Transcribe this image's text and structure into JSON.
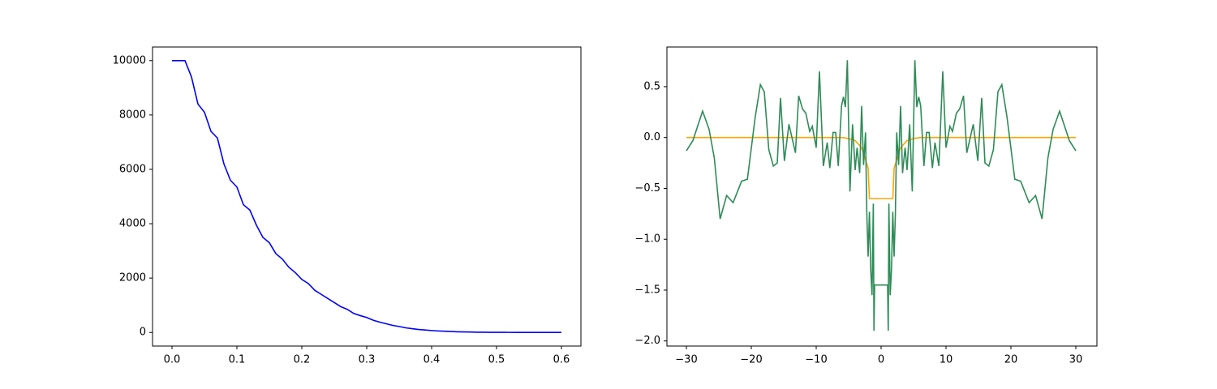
{
  "chart_data": [
    {
      "type": "line",
      "x": [
        0,
        0.01,
        0.02,
        0.03,
        0.04,
        0.05,
        0.06,
        0.07,
        0.08,
        0.09,
        0.1,
        0.11,
        0.12,
        0.13,
        0.14,
        0.15,
        0.16,
        0.17,
        0.18,
        0.19,
        0.2,
        0.21,
        0.22,
        0.23,
        0.24,
        0.25,
        0.26,
        0.27,
        0.28,
        0.29,
        0.3,
        0.31,
        0.32,
        0.33,
        0.34,
        0.35,
        0.36,
        0.37,
        0.38,
        0.39,
        0.4,
        0.41,
        0.42,
        0.43,
        0.44,
        0.45,
        0.46,
        0.47,
        0.48,
        0.49,
        0.5,
        0.51,
        0.52,
        0.53,
        0.54,
        0.55,
        0.56,
        0.57,
        0.58,
        0.59,
        0.6
      ],
      "series": [
        {
          "color": "#0000ff",
          "values": [
            10000,
            10000,
            10000,
            9400,
            8400,
            8100,
            7400,
            7150,
            6200,
            5600,
            5350,
            4700,
            4500,
            3950,
            3500,
            3300,
            2900,
            2700,
            2400,
            2200,
            1950,
            1800,
            1550,
            1400,
            1250,
            1100,
            950,
            850,
            700,
            620,
            550,
            450,
            380,
            320,
            260,
            220,
            170,
            140,
            110,
            90,
            70,
            55,
            45,
            35,
            25,
            20,
            15,
            10,
            8,
            6,
            5,
            4,
            3,
            2,
            2,
            1,
            1,
            1,
            0,
            0,
            0
          ]
        }
      ],
      "xlim": [
        -0.03,
        0.63
      ],
      "xticks": [
        {
          "value": 0,
          "label": "0.0"
        },
        0.1,
        0.2,
        0.3,
        0.4,
        0.5,
        0.6
      ],
      "ylim": [
        -500,
        10500
      ],
      "yticks": [
        0,
        2000,
        4000,
        6000,
        8000,
        10000
      ]
    },
    {
      "type": "line",
      "series": [
        {
          "color": "#ffa500",
          "x": [
            -30,
            -10,
            -6,
            -5,
            -4,
            -3,
            -2.5,
            -2,
            -1.8,
            1.8,
            2,
            2.5,
            3,
            4,
            5,
            6,
            10,
            30
          ],
          "values": [
            0,
            0,
            0,
            -0.01,
            -0.03,
            -0.1,
            -0.2,
            -0.3,
            -0.6,
            -0.6,
            -0.3,
            -0.2,
            -0.1,
            -0.03,
            -0.01,
            0,
            0,
            0
          ]
        },
        {
          "color": "#2e8b57",
          "x": [
            -30,
            -29,
            -27.5,
            -26.5,
            -25.7,
            -24.8,
            -23.8,
            -22.8,
            -21.5,
            -20.6,
            -19.4,
            -18.6,
            -18,
            -17.3,
            -16.6,
            -16,
            -15.5,
            -14.9,
            -14.2,
            -13.2,
            -12.7,
            -12.1,
            -11.6,
            -11,
            -10.6,
            -10,
            -9.5,
            -8.9,
            -8.3,
            -7.9,
            -7.4,
            -7,
            -6.6,
            -6.1,
            -5.8,
            -5.5,
            -5.2,
            -4.8,
            -4.4,
            -4,
            -3.7,
            -3.3,
            -3,
            -2.7,
            -2.4,
            -2.2,
            -2,
            -1.8,
            -1.6,
            -1.4,
            -1.2,
            -1.1,
            -1,
            1,
            1.1,
            1.2,
            1.4,
            1.6,
            1.8,
            2,
            2.2,
            2.4,
            2.7,
            3,
            3.3,
            3.7,
            4,
            4.4,
            4.8,
            5.2,
            5.5,
            5.8,
            6.1,
            6.6,
            7,
            7.4,
            7.9,
            8.3,
            8.9,
            9.5,
            10,
            10.6,
            11,
            11.6,
            12.1,
            12.7,
            13.2,
            14.2,
            14.9,
            15.5,
            16,
            16.6,
            17.3,
            18,
            18.6,
            19.4,
            20.6,
            21.5,
            22.8,
            23.8,
            24.8,
            25.7,
            26.5,
            27.5,
            29,
            30
          ],
          "values": [
            -0.13,
            -0.03,
            0.26,
            0.08,
            -0.2,
            -0.8,
            -0.57,
            -0.64,
            -0.43,
            -0.41,
            0.2,
            0.52,
            0.45,
            -0.12,
            -0.28,
            -0.25,
            0.39,
            -0.23,
            0.13,
            -0.15,
            0.41,
            0.28,
            0.24,
            0.06,
            0.11,
            -0.1,
            0.65,
            -0.28,
            -0.05,
            -0.3,
            0.05,
            0.05,
            -0.28,
            0.31,
            0.4,
            0.3,
            0.76,
            -0.53,
            0.13,
            -0.32,
            -0.1,
            -0.35,
            0.31,
            -0.27,
            0.05,
            -0.75,
            -1.17,
            -0.73,
            -1.3,
            -1.55,
            -0.65,
            -1.9,
            -1.45,
            -1.45,
            -1.9,
            -0.65,
            -1.55,
            -1.3,
            -0.73,
            -1.17,
            -0.75,
            0.05,
            -0.27,
            0.31,
            -0.35,
            -0.1,
            -0.32,
            0.13,
            -0.53,
            0.76,
            0.3,
            0.4,
            0.31,
            -0.28,
            0.05,
            0.05,
            -0.3,
            -0.05,
            -0.28,
            0.65,
            -0.1,
            0.11,
            0.06,
            0.24,
            0.28,
            0.41,
            -0.15,
            0.13,
            -0.23,
            0.39,
            -0.25,
            -0.28,
            -0.12,
            0.45,
            0.52,
            0.2,
            -0.41,
            -0.43,
            -0.64,
            -0.57,
            -0.8,
            -0.2,
            0.08,
            0.26,
            -0.03,
            -0.13
          ]
        }
      ],
      "xlim": [
        -33,
        33.25
      ],
      "xticks": [
        {
          "value": -30,
          "label": "−30"
        },
        {
          "value": -20,
          "label": "−20"
        },
        {
          "value": -10,
          "label": "−10"
        },
        0,
        10,
        20,
        30
      ],
      "ylim": [
        -2.05,
        0.89
      ],
      "yticks": [
        {
          "value": -2,
          "label": "−2.0"
        },
        {
          "value": -1.5,
          "label": "−1.5"
        },
        {
          "value": -1,
          "label": "−1.0"
        },
        {
          "value": -0.5,
          "label": "−0.5"
        },
        {
          "value": 0,
          "label": "0.0"
        },
        0.5
      ]
    }
  ]
}
